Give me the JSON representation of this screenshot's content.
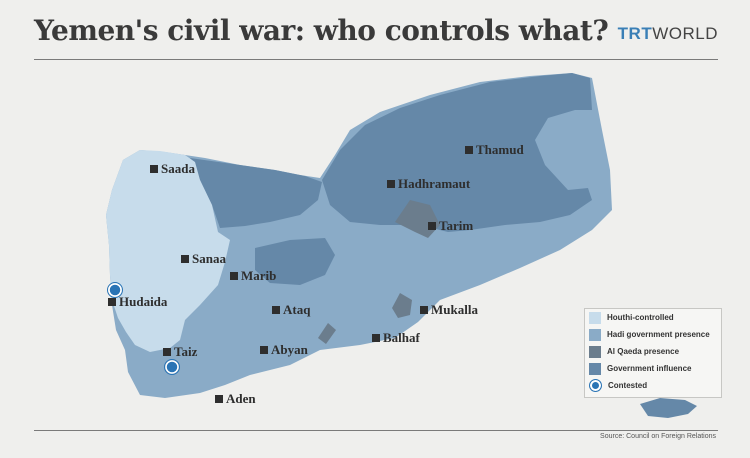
{
  "title": "Yemen's civil war: who controls what?",
  "brand": {
    "part1": "TRT",
    "part2": "WORLD"
  },
  "source": "Source: Council on Foreign Relations",
  "colors": {
    "houthi": "#c7dceb",
    "hadi": "#8aabc7",
    "alqaeda": "#6b7d8d",
    "government": "#6588a8",
    "contested": "#2a74b5"
  },
  "cities": [
    {
      "name": "Saada"
    },
    {
      "name": "Sanaa"
    },
    {
      "name": "Marib"
    },
    {
      "name": "Hudaida"
    },
    {
      "name": "Ataq"
    },
    {
      "name": "Taiz"
    },
    {
      "name": "Abyan"
    },
    {
      "name": "Aden"
    },
    {
      "name": "Balhaf"
    },
    {
      "name": "Mukalla"
    },
    {
      "name": "Tarim"
    },
    {
      "name": "Hadhramaut"
    },
    {
      "name": "Thamud"
    }
  ],
  "contested_markers": [
    {
      "name": "Hudaida contested"
    },
    {
      "name": "Taiz contested"
    }
  ],
  "legend": [
    {
      "label": "Houthi-controlled",
      "swatch": "houthi"
    },
    {
      "label": "Hadi government presence",
      "swatch": "hadi"
    },
    {
      "label": "Al Qaeda presence",
      "swatch": "alqaeda"
    },
    {
      "label": "Government influence",
      "swatch": "government"
    },
    {
      "label": "Contested",
      "swatch": "contested"
    }
  ]
}
